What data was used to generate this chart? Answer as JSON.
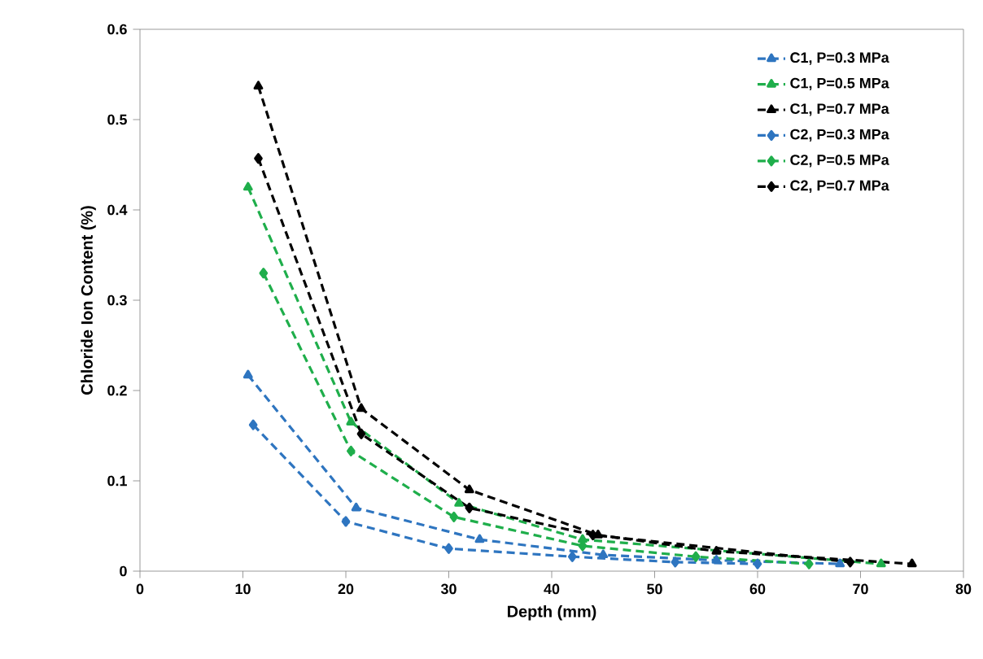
{
  "chart_data": {
    "type": "line",
    "xlabel": "Depth (mm)",
    "ylabel": "Chloride Ion Content (%)",
    "xlim": [
      0,
      80
    ],
    "xticks": [
      0,
      10,
      20,
      30,
      40,
      50,
      60,
      70,
      80
    ],
    "ylim": [
      0,
      0.6
    ],
    "yticks": [
      0,
      0.1,
      0.2,
      0.3,
      0.4,
      0.5,
      0.6
    ],
    "grid": false,
    "legend": "top right",
    "line_style": "dashed",
    "series": [
      {
        "name": "C1, P=0.3 MPa",
        "color": "#2e75c0",
        "marker": "triangle",
        "x": [
          10.5,
          21,
          33,
          45,
          56,
          68
        ],
        "values": [
          0.217,
          0.07,
          0.035,
          0.018,
          0.012,
          0.008
        ]
      },
      {
        "name": "C1, P=0.5 MPa",
        "color": "#1fae4b",
        "marker": "triangle",
        "x": [
          10.5,
          20.5,
          31,
          43,
          56,
          65,
          72
        ],
        "values": [
          0.425,
          0.165,
          0.075,
          0.035,
          null,
          null,
          0.008
        ]
      },
      {
        "name": "C1, P=0.7 MPa",
        "color": "#000000",
        "marker": "triangle",
        "x": [
          11.5,
          21.5,
          32,
          44.5,
          56,
          69,
          75
        ],
        "values": [
          0.537,
          0.18,
          0.09,
          0.04,
          0.022,
          null,
          0.008
        ]
      },
      {
        "name": "C2, P=0.3 MPa",
        "color": "#2e75c0",
        "marker": "diamond",
        "x": [
          11,
          20,
          30,
          42,
          52,
          60
        ],
        "values": [
          0.162,
          0.055,
          0.025,
          0.016,
          0.01,
          0.008
        ]
      },
      {
        "name": "C2, P=0.5 MPa",
        "color": "#1fae4b",
        "marker": "diamond",
        "x": [
          12,
          20.5,
          30.5,
          43,
          54,
          65
        ],
        "values": [
          0.33,
          0.133,
          0.06,
          0.028,
          0.016,
          0.008
        ]
      },
      {
        "name": "C2, P=0.7 MPa",
        "color": "#000000",
        "marker": "diamond",
        "x": [
          11.5,
          21.5,
          32,
          44,
          56,
          69
        ],
        "values": [
          0.457,
          0.152,
          0.07,
          0.04,
          null,
          0.01
        ]
      }
    ]
  }
}
